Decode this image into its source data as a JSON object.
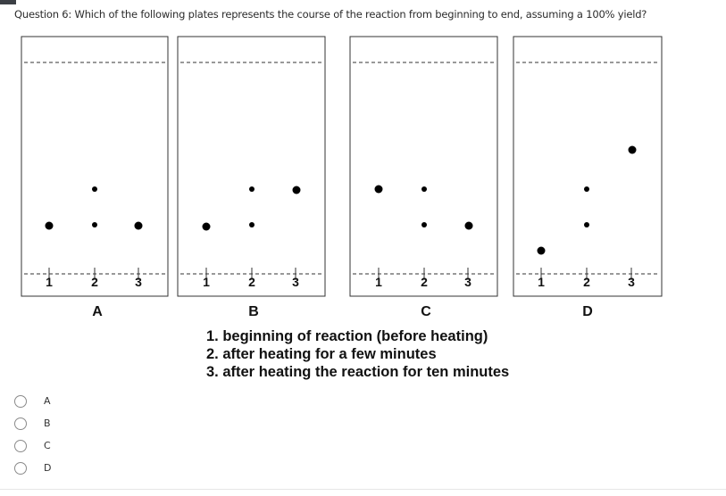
{
  "question": {
    "text": "Question 6: Which of the following plates represents the course of the reaction from beginning to end, assuming a 100% yield?"
  },
  "figure": {
    "lane_labels": [
      "1",
      "2",
      "3"
    ],
    "plates": [
      {
        "letter": "A",
        "spots": [
          {
            "lane": "1",
            "level": "low"
          },
          {
            "lane": "2",
            "level": "low"
          },
          {
            "lane": "2",
            "level": "mid"
          },
          {
            "lane": "3",
            "level": "low"
          }
        ]
      },
      {
        "letter": "B",
        "spots": [
          {
            "lane": "1",
            "level": "low"
          },
          {
            "lane": "2",
            "level": "low"
          },
          {
            "lane": "2",
            "level": "mid"
          },
          {
            "lane": "3",
            "level": "mid"
          }
        ]
      },
      {
        "letter": "C",
        "spots": [
          {
            "lane": "1",
            "level": "mid"
          },
          {
            "lane": "2",
            "level": "mid"
          },
          {
            "lane": "2",
            "level": "low"
          },
          {
            "lane": "3",
            "level": "low"
          }
        ]
      },
      {
        "letter": "D",
        "spots": [
          {
            "lane": "1",
            "level": "baseline-high"
          },
          {
            "lane": "2",
            "level": "low"
          },
          {
            "lane": "2",
            "level": "mid"
          },
          {
            "lane": "3",
            "level": "high"
          }
        ]
      }
    ],
    "legend": [
      "1. beginning of reaction (before heating)",
      "2. after heating for a few minutes",
      "3. after heating the reaction for ten minutes"
    ]
  },
  "options": [
    {
      "label": "A",
      "selected": false
    },
    {
      "label": "B",
      "selected": false
    },
    {
      "label": "C",
      "selected": false
    },
    {
      "label": "D",
      "selected": false
    }
  ]
}
